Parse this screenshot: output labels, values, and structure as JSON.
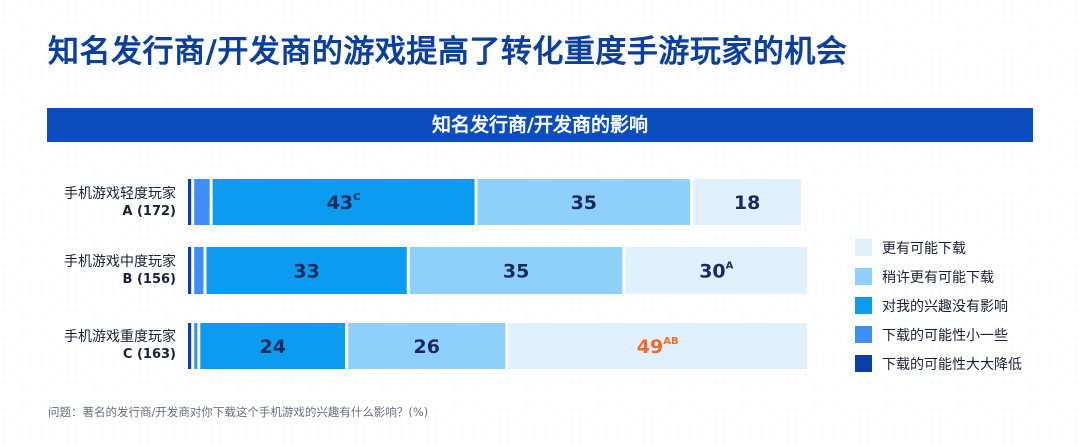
{
  "title": "知名发行商/开发商的游戏提高了转化重度手游玩家的机会",
  "banner": "知名发行商/开发商的影响",
  "footnote": "问题：著名的发行商/开发商对你下载这个手机游戏的兴趣有什么影响？(%)",
  "colors": {
    "title": "#0a3f9c",
    "banner": "#0b4dbd",
    "highlight_text": "#f26a2a",
    "value_text": "#1b2a5c"
  },
  "chart_data": {
    "type": "bar",
    "orientation": "horizontal",
    "stacked": true,
    "xlim": [
      0,
      100
    ],
    "categories": [
      {
        "label": "手机游戏轻度玩家",
        "sample": "A (172)"
      },
      {
        "label": "手机游戏中度玩家",
        "sample": "B (156)"
      },
      {
        "label": "手机游戏重度玩家",
        "sample": "C (163)"
      }
    ],
    "series": [
      {
        "name": "下载的可能性大大降低",
        "color": "#0a3fa8",
        "values": [
          1,
          1,
          1
        ]
      },
      {
        "name": "下载的可能性小一些",
        "color": "#3f8ef5",
        "values": [
          3,
          2,
          1
        ]
      },
      {
        "name": "对我的兴趣没有影响",
        "color": "#0b9cf0",
        "values": [
          43,
          33,
          24
        ]
      },
      {
        "name": "稍许更有可能下载",
        "color": "#8fd0fb",
        "values": [
          35,
          35,
          26
        ]
      },
      {
        "name": "更有可能下载",
        "color": "#e0f0fc",
        "values": [
          18,
          30,
          49
        ]
      }
    ],
    "data_labels": [
      [
        null,
        null,
        {
          "text": "43",
          "sup": "C"
        },
        {
          "text": "35",
          "sup": ""
        },
        {
          "text": "18",
          "sup": ""
        }
      ],
      [
        null,
        null,
        {
          "text": "33",
          "sup": ""
        },
        {
          "text": "35",
          "sup": ""
        },
        {
          "text": "30",
          "sup": "A"
        }
      ],
      [
        null,
        null,
        {
          "text": "24",
          "sup": ""
        },
        {
          "text": "26",
          "sup": ""
        },
        {
          "text": "49",
          "sup": "AB",
          "highlight": true
        }
      ]
    ],
    "legend_order": [
      "更有可能下载",
      "稍许更有可能下载",
      "对我的兴趣没有影响",
      "下载的可能性小一些",
      "下载的可能性大大降低"
    ],
    "legend_position": "right"
  }
}
